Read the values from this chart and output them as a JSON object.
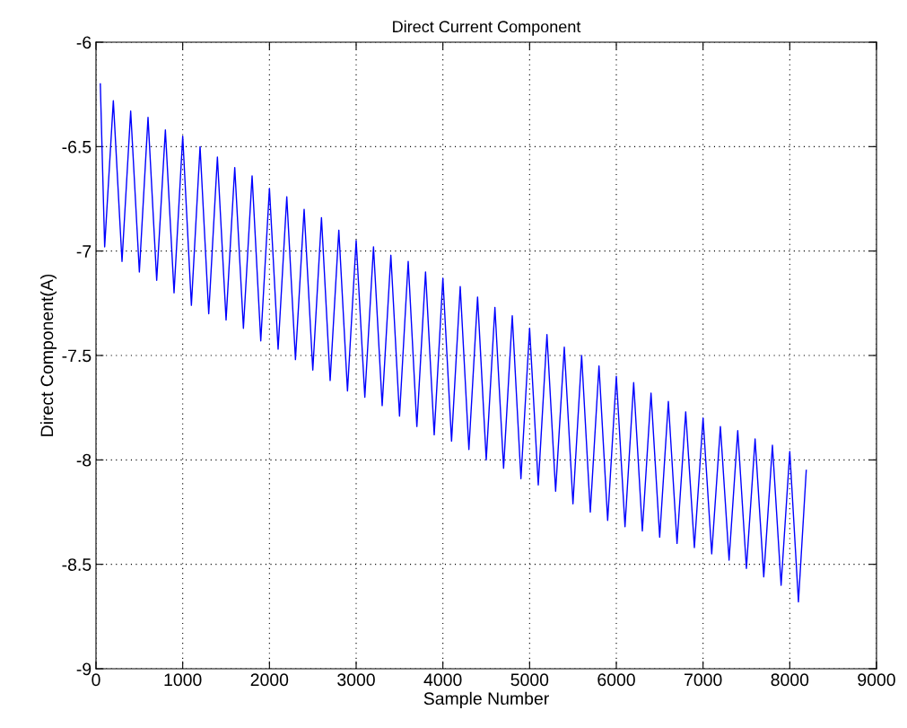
{
  "chart_data": {
    "type": "line",
    "title": "Direct Current Component",
    "xlabel": "Sample Number",
    "ylabel": "Direct Component(A)",
    "xlim": [
      0,
      9000
    ],
    "xticks": [
      0,
      1000,
      2000,
      3000,
      4000,
      5000,
      6000,
      7000,
      8000,
      9000
    ],
    "ylim": [
      -9,
      -6
    ],
    "yticks": [
      -9,
      -8.5,
      -8,
      -7.5,
      -7,
      -6.5,
      -6
    ],
    "grid": true,
    "legend": false,
    "series": [
      {
        "color": "#0000ff",
        "x": [
          50,
          100,
          200,
          300,
          400,
          500,
          600,
          700,
          800,
          900,
          1000,
          1100,
          1200,
          1300,
          1400,
          1500,
          1600,
          1700,
          1800,
          1900,
          2000,
          2100,
          2200,
          2300,
          2400,
          2500,
          2600,
          2700,
          2800,
          2900,
          3000,
          3100,
          3200,
          3300,
          3400,
          3500,
          3600,
          3700,
          3800,
          3900,
          4000,
          4100,
          4200,
          4300,
          4400,
          4500,
          4600,
          4700,
          4800,
          4900,
          5000,
          5100,
          5200,
          5300,
          5400,
          5500,
          5600,
          5700,
          5800,
          5900,
          6000,
          6100,
          6200,
          6300,
          6400,
          6500,
          6600,
          6700,
          6800,
          6900,
          7000,
          7100,
          7200,
          7300,
          7400,
          7500,
          7600,
          7700,
          7800,
          7900,
          8000,
          8100,
          8190
        ],
        "values": [
          -6.2,
          -6.98,
          -6.28,
          -7.05,
          -6.33,
          -7.1,
          -6.36,
          -7.14,
          -6.42,
          -7.2,
          -6.45,
          -7.26,
          -6.5,
          -7.3,
          -6.55,
          -7.33,
          -6.6,
          -7.37,
          -6.64,
          -7.43,
          -6.7,
          -7.47,
          -6.74,
          -7.52,
          -6.8,
          -7.57,
          -6.84,
          -7.62,
          -6.9,
          -7.67,
          -6.95,
          -7.7,
          -6.98,
          -7.74,
          -7.02,
          -7.79,
          -7.05,
          -7.84,
          -7.1,
          -7.88,
          -7.13,
          -7.91,
          -7.17,
          -7.95,
          -7.22,
          -8.0,
          -7.27,
          -8.04,
          -7.31,
          -8.09,
          -7.37,
          -8.12,
          -7.4,
          -8.15,
          -7.46,
          -8.21,
          -7.5,
          -8.25,
          -7.55,
          -8.29,
          -7.6,
          -8.32,
          -7.63,
          -8.34,
          -7.68,
          -8.37,
          -7.72,
          -8.4,
          -7.77,
          -8.42,
          -7.8,
          -8.45,
          -7.84,
          -8.48,
          -7.86,
          -8.52,
          -7.9,
          -8.56,
          -7.93,
          -8.6,
          -7.96,
          -8.68,
          -8.05
        ]
      }
    ]
  }
}
